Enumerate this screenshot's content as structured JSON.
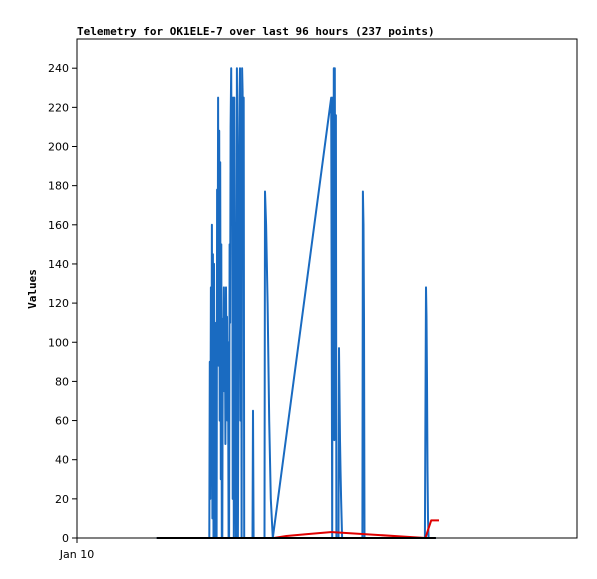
{
  "chart_data": {
    "type": "line",
    "title": "Telemetry for OK1ELE-7 over last 96 hours (237 points)",
    "ylabel": "Values",
    "xlabel": "",
    "x_tick_labels": [
      "Jan 10"
    ],
    "ylim": [
      0,
      255
    ],
    "y_ticks": [
      0,
      20,
      40,
      60,
      80,
      100,
      120,
      140,
      160,
      180,
      200,
      220,
      240
    ],
    "x_range": [
      0,
      96
    ],
    "grid": false,
    "legend": "none",
    "series": [
      {
        "color": "#1a6bc1",
        "points": [
          [
            15.3,
            0
          ],
          [
            25.4,
            0
          ],
          [
            25.4,
            0
          ],
          [
            25.5,
            90
          ],
          [
            25.6,
            20
          ],
          [
            25.7,
            128
          ],
          [
            25.8,
            48
          ],
          [
            25.9,
            160
          ],
          [
            26.0,
            10
          ],
          [
            26.1,
            145
          ],
          [
            26.2,
            0
          ],
          [
            26.3,
            140
          ],
          [
            26.4,
            30
          ],
          [
            26.5,
            110
          ],
          [
            26.6,
            0
          ],
          [
            26.8,
            0
          ],
          [
            26.9,
            178
          ],
          [
            27.0,
            100
          ],
          [
            27.1,
            225
          ],
          [
            27.2,
            88
          ],
          [
            27.3,
            208
          ],
          [
            27.4,
            60
          ],
          [
            27.5,
            192
          ],
          [
            27.6,
            30
          ],
          [
            27.7,
            150
          ],
          [
            27.8,
            0
          ],
          [
            27.9,
            0
          ],
          [
            28.0,
            112
          ],
          [
            28.1,
            95
          ],
          [
            28.2,
            128
          ],
          [
            28.3,
            75
          ],
          [
            28.4,
            113
          ],
          [
            28.5,
            48
          ],
          [
            28.6,
            128
          ],
          [
            28.7,
            90
          ],
          [
            28.8,
            113
          ],
          [
            28.9,
            60
          ],
          [
            29.0,
            100
          ],
          [
            29.1,
            0
          ],
          [
            29.2,
            0
          ],
          [
            29.3,
            150
          ],
          [
            29.4,
            110
          ],
          [
            29.5,
            210
          ],
          [
            29.6,
            240
          ],
          [
            29.7,
            180
          ],
          [
            29.8,
            225
          ],
          [
            29.9,
            20
          ],
          [
            30.0,
            225
          ],
          [
            30.1,
            0
          ],
          [
            30.2,
            225
          ],
          [
            30.3,
            150
          ],
          [
            30.4,
            60
          ],
          [
            30.5,
            0
          ],
          [
            30.6,
            0
          ],
          [
            30.7,
            240
          ],
          [
            30.8,
            180
          ],
          [
            30.9,
            0
          ],
          [
            31.0,
            100
          ],
          [
            31.1,
            180
          ],
          [
            31.2,
            225
          ],
          [
            31.3,
            240
          ],
          [
            31.4,
            60
          ],
          [
            31.5,
            225
          ],
          [
            31.6,
            0
          ],
          [
            31.7,
            240
          ],
          [
            31.8,
            228
          ],
          [
            31.9,
            160
          ],
          [
            32.0,
            225
          ],
          [
            32.1,
            0
          ],
          [
            33.7,
            0
          ],
          [
            33.8,
            65
          ],
          [
            33.9,
            0
          ],
          [
            36.0,
            0
          ],
          [
            36.1,
            177
          ],
          [
            36.3,
            160
          ],
          [
            36.6,
            120
          ],
          [
            36.9,
            60
          ],
          [
            37.2,
            20
          ],
          [
            37.6,
            0
          ],
          [
            48.8,
            225
          ],
          [
            49.0,
            0
          ],
          [
            49.1,
            225
          ],
          [
            49.2,
            60
          ],
          [
            49.3,
            240
          ],
          [
            49.4,
            50
          ],
          [
            49.5,
            240
          ],
          [
            49.6,
            110
          ],
          [
            49.7,
            216
          ],
          [
            49.8,
            0
          ],
          [
            50.2,
            0
          ],
          [
            50.3,
            97
          ],
          [
            50.4,
            73
          ],
          [
            50.5,
            50
          ],
          [
            50.6,
            35
          ],
          [
            50.7,
            20
          ],
          [
            50.8,
            10
          ],
          [
            50.9,
            0
          ],
          [
            54.8,
            0
          ],
          [
            54.9,
            177
          ],
          [
            55.0,
            160
          ],
          [
            55.1,
            112
          ],
          [
            55.2,
            0
          ],
          [
            66.8,
            0
          ],
          [
            66.9,
            60
          ],
          [
            67.0,
            128
          ],
          [
            67.1,
            113
          ],
          [
            67.2,
            80
          ],
          [
            67.3,
            35
          ],
          [
            67.4,
            10
          ],
          [
            67.5,
            0
          ],
          [
            68.9,
            0
          ]
        ]
      },
      {
        "color": "#e00000",
        "points": [
          [
            37.8,
            0
          ],
          [
            40.2,
            1
          ],
          [
            44.2,
            2
          ],
          [
            48.7,
            3
          ],
          [
            48.9,
            3
          ],
          [
            49.0,
            3
          ],
          [
            66.9,
            0
          ],
          [
            67.5,
            5
          ],
          [
            68.0,
            9
          ],
          [
            69.5,
            9
          ]
        ]
      },
      {
        "color": "#000000",
        "points": [
          [
            15.3,
            0
          ],
          [
            68.9,
            0
          ]
        ]
      }
    ]
  }
}
